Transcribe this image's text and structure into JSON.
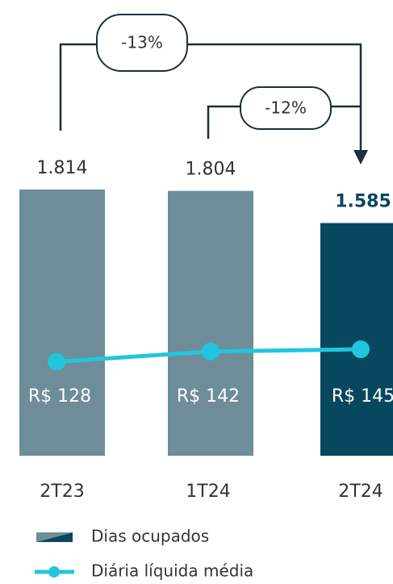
{
  "chart_data": {
    "type": "bar",
    "categories": [
      "2T23",
      "1T24",
      "2T24"
    ],
    "series": [
      {
        "name": "Dias ocupados",
        "type": "bar",
        "colors": [
          "#6e8d99",
          "#6e8d99",
          "#07485f"
        ],
        "values": [
          1814,
          1804,
          1585
        ],
        "value_labels": [
          "1.814",
          "1.804",
          "1.585"
        ]
      },
      {
        "name": "Diária líquida média",
        "type": "line",
        "axis": "y2",
        "color": "#20c6de",
        "values": [
          128,
          142,
          145
        ],
        "value_labels": [
          "R$ 128",
          "R$ 142",
          "R$ 145"
        ]
      }
    ],
    "ylim": [
      0,
      2000
    ],
    "y2lim": [
      0,
      400
    ],
    "annotations": [
      {
        "text": "-13%"
      },
      {
        "text": "-12%"
      }
    ]
  }
}
